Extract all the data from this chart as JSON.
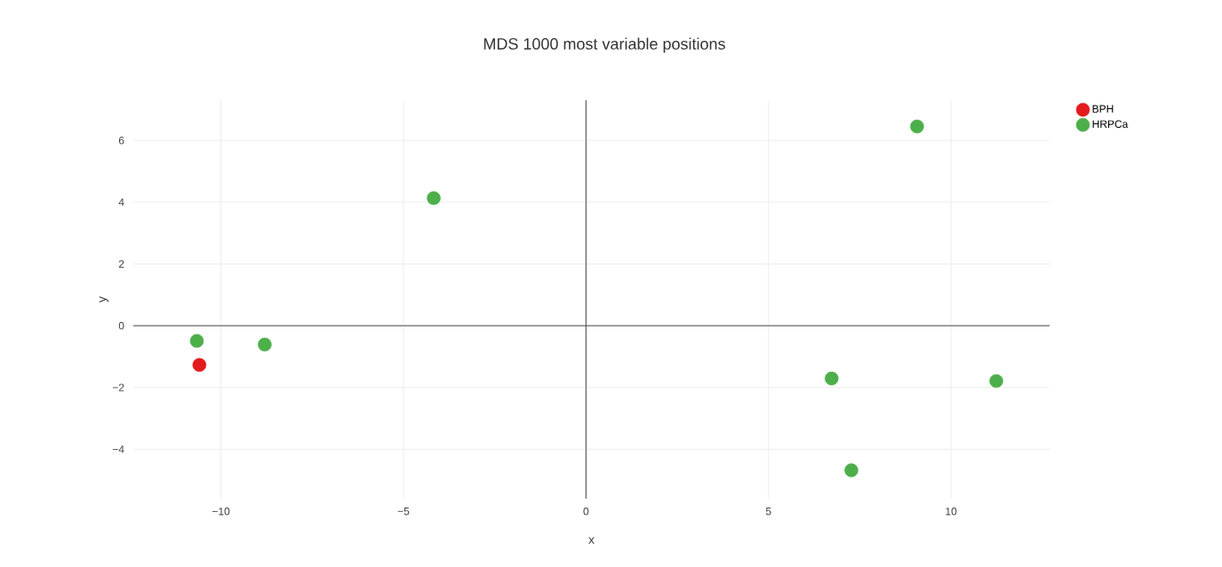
{
  "chart_data": {
    "type": "scatter",
    "title": "MDS 1000 most variable positions",
    "xlabel": "x",
    "ylabel": "y",
    "series": [
      {
        "name": "BPH",
        "color": "#e41a1c",
        "x": [
          -10.59
        ],
        "values": [
          -1.27
        ]
      },
      {
        "name": "HRPCa",
        "color": "#4daf4a",
        "x": [
          -10.66,
          -8.8,
          -4.17,
          6.73,
          7.27,
          9.07,
          11.24
        ],
        "values": [
          -0.49,
          -0.61,
          4.13,
          -1.71,
          -4.68,
          6.45,
          -1.79
        ]
      }
    ],
    "xlim": [
      -12.4,
      12.7
    ],
    "ylim": [
      -5.6,
      7.3
    ],
    "xticks": [
      {
        "value": -10,
        "label": "−10"
      },
      {
        "value": -5,
        "label": "−5"
      },
      0,
      5,
      10
    ],
    "yticks": [
      {
        "value": -4,
        "label": "−4"
      },
      {
        "value": -2,
        "label": "−2"
      },
      0,
      2,
      4,
      6
    ],
    "grid": true,
    "legend": "top right"
  }
}
